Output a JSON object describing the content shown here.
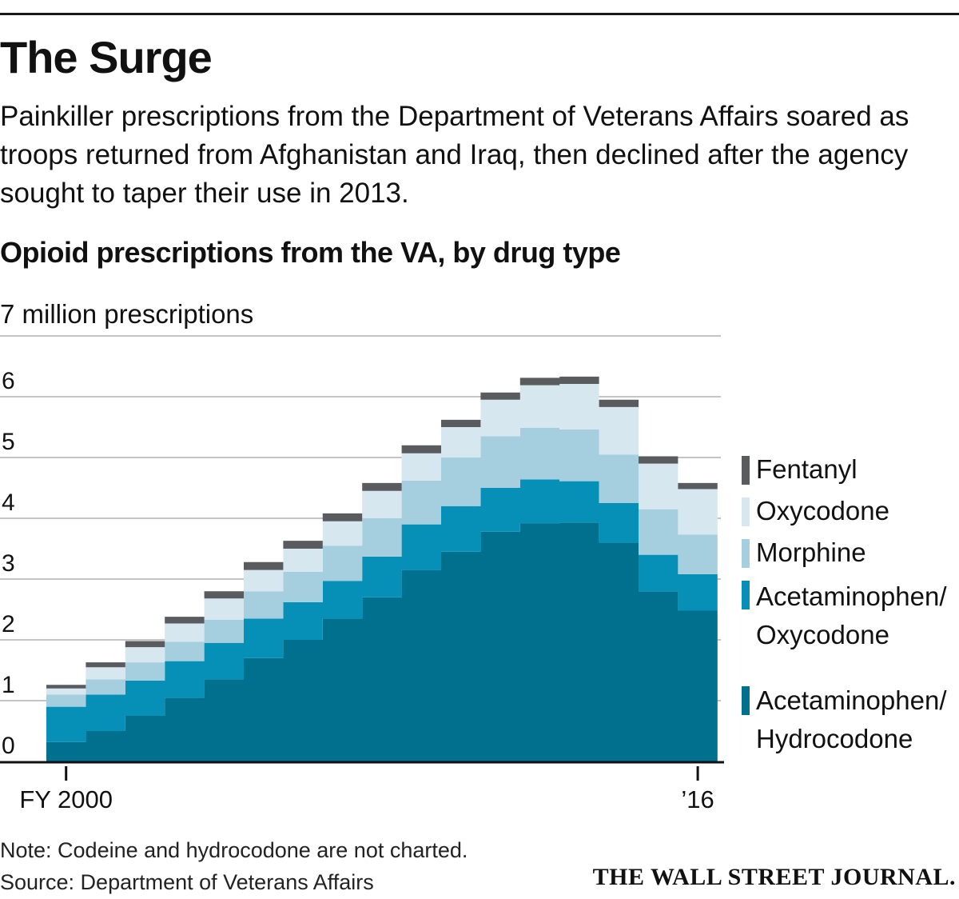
{
  "headline": "The Surge",
  "dek": "Painkiller prescriptions from the Department of Veterans Affairs soared as troops returned from Afghanistan and Iraq, then declined after the agency sought to taper their use in 2013.",
  "chart_title": "Opioid prescriptions from the VA, by drug type",
  "unit_label": "7 million prescriptions",
  "footer": {
    "note": "Note: Codeine and hydrocodone are not charted.",
    "source": "Source: Department of Veterans Affairs",
    "brand": "THE WALL STREET JOURNAL."
  },
  "chart_data": {
    "type": "area",
    "stacked": true,
    "step": true,
    "title": "Opioid prescriptions from the VA, by drug type",
    "ylabel": "7 million prescriptions",
    "ylim": [
      0,
      7
    ],
    "yticks": [
      0,
      1,
      2,
      3,
      4,
      5,
      6
    ],
    "ytick_labels": [
      "0",
      "1",
      "2",
      "3",
      "4",
      "5",
      "6"
    ],
    "grid": true,
    "legend_position": "right",
    "x": [
      2000,
      2001,
      2002,
      2003,
      2004,
      2005,
      2006,
      2007,
      2008,
      2009,
      2010,
      2011,
      2012,
      2013,
      2014,
      2015,
      2016
    ],
    "xtick_labels": [
      {
        "x": 2000,
        "label": "FY 2000"
      },
      {
        "x": 2016,
        "label": "’16"
      }
    ],
    "series": [
      {
        "name": "Acetaminophen/ Hydrocodone",
        "color": "#00708f",
        "values": [
          0.32,
          0.5,
          0.75,
          1.05,
          1.35,
          1.7,
          2.0,
          2.35,
          2.7,
          3.15,
          3.45,
          3.78,
          3.92,
          3.93,
          3.6,
          2.8,
          2.48
        ]
      },
      {
        "name": "Acetaminophen/ Oxycodone",
        "color": "#0690b8",
        "values": [
          0.58,
          0.6,
          0.58,
          0.6,
          0.6,
          0.65,
          0.62,
          0.62,
          0.67,
          0.75,
          0.75,
          0.72,
          0.72,
          0.68,
          0.65,
          0.6,
          0.6
        ]
      },
      {
        "name": "Morphine",
        "color": "#a5cfdf",
        "values": [
          0.2,
          0.25,
          0.3,
          0.32,
          0.38,
          0.45,
          0.5,
          0.58,
          0.63,
          0.72,
          0.8,
          0.85,
          0.85,
          0.85,
          0.8,
          0.75,
          0.65
        ]
      },
      {
        "name": "Oxycodone",
        "color": "#d6e7ef",
        "values": [
          0.1,
          0.2,
          0.25,
          0.3,
          0.35,
          0.35,
          0.38,
          0.4,
          0.45,
          0.45,
          0.5,
          0.6,
          0.7,
          0.75,
          0.78,
          0.75,
          0.75
        ]
      },
      {
        "name": "Fentanyl",
        "color": "#595b5f",
        "values": [
          0.06,
          0.08,
          0.1,
          0.11,
          0.12,
          0.13,
          0.13,
          0.13,
          0.13,
          0.13,
          0.12,
          0.12,
          0.12,
          0.12,
          0.12,
          0.12,
          0.1
        ]
      }
    ]
  }
}
